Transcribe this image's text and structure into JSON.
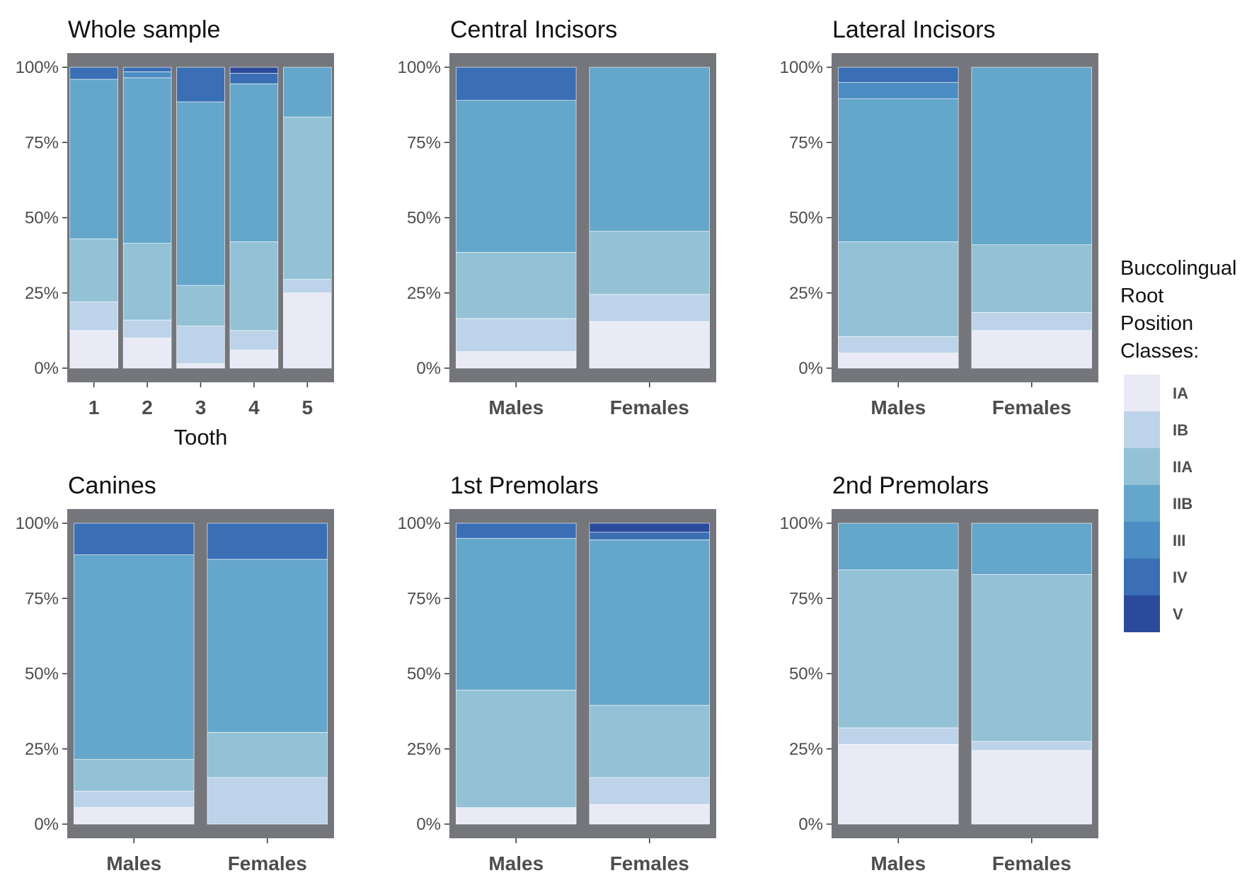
{
  "legend": {
    "title_lines": [
      "Buccolingual",
      "Root",
      "Position",
      "Classes:"
    ],
    "classes": [
      "IA",
      "IB",
      "IIA",
      "IIB",
      "III",
      "IV",
      "V"
    ]
  },
  "colors": {
    "IA": "#eaeaf6",
    "IB": "#bdd3e9",
    "IIA": "#93c2d6",
    "IIB": "#65a6cb",
    "III": "#4c8ec3",
    "IV": "#3a6fb5",
    "V": "#2b4a9b",
    "panel_bg": "#74767b"
  },
  "y_tick_labels": [
    "0%",
    "25%",
    "50%",
    "75%",
    "100%"
  ],
  "chart_data": [
    {
      "type": "bar",
      "stacked": true,
      "title": "Whole sample",
      "xlabel": "Tooth",
      "ylabel": "",
      "ylim": [
        0,
        100
      ],
      "categories": [
        "1",
        "2",
        "3",
        "4",
        "5"
      ],
      "series": [
        {
          "name": "IA",
          "values": [
            12.5,
            10,
            1.5,
            6,
            25
          ]
        },
        {
          "name": "IB",
          "values": [
            9.5,
            6,
            12.5,
            6.5,
            4.5
          ]
        },
        {
          "name": "IIA",
          "values": [
            21,
            25.5,
            13.5,
            29.5,
            54
          ]
        },
        {
          "name": "IIB",
          "values": [
            53,
            55,
            61,
            52.5,
            16.5
          ]
        },
        {
          "name": "III",
          "values": [
            0,
            2,
            0,
            0,
            0
          ]
        },
        {
          "name": "IV",
          "values": [
            4,
            1.5,
            11.5,
            3.5,
            0
          ]
        },
        {
          "name": "V",
          "values": [
            0,
            0,
            0,
            2,
            0
          ]
        }
      ]
    },
    {
      "type": "bar",
      "stacked": true,
      "title": "Central Incisors",
      "xlabel": "",
      "ylabel": "",
      "ylim": [
        0,
        100
      ],
      "categories": [
        "Males",
        "Females"
      ],
      "series": [
        {
          "name": "IA",
          "values": [
            5.5,
            15.5
          ]
        },
        {
          "name": "IB",
          "values": [
            11,
            9
          ]
        },
        {
          "name": "IIA",
          "values": [
            22,
            21
          ]
        },
        {
          "name": "IIB",
          "values": [
            50.5,
            54.5
          ]
        },
        {
          "name": "III",
          "values": [
            0,
            0
          ]
        },
        {
          "name": "IV",
          "values": [
            11,
            0
          ]
        },
        {
          "name": "V",
          "values": [
            0,
            0
          ]
        }
      ]
    },
    {
      "type": "bar",
      "stacked": true,
      "title": "Lateral Incisors",
      "xlabel": "",
      "ylabel": "",
      "ylim": [
        0,
        100
      ],
      "categories": [
        "Males",
        "Females"
      ],
      "series": [
        {
          "name": "IA",
          "values": [
            5,
            12.5
          ]
        },
        {
          "name": "IB",
          "values": [
            5.5,
            6
          ]
        },
        {
          "name": "IIA",
          "values": [
            31.5,
            22.5
          ]
        },
        {
          "name": "IIB",
          "values": [
            47.5,
            59
          ]
        },
        {
          "name": "III",
          "values": [
            5.5,
            0
          ]
        },
        {
          "name": "IV",
          "values": [
            5,
            0
          ]
        },
        {
          "name": "V",
          "values": [
            0,
            0
          ]
        }
      ]
    },
    {
      "type": "bar",
      "stacked": true,
      "title": "Canines",
      "xlabel": "",
      "ylabel": "",
      "ylim": [
        0,
        100
      ],
      "categories": [
        "Males",
        "Females"
      ],
      "series": [
        {
          "name": "IA",
          "values": [
            5.5,
            0
          ]
        },
        {
          "name": "IB",
          "values": [
            5.5,
            15.5
          ]
        },
        {
          "name": "IIA",
          "values": [
            10.5,
            15
          ]
        },
        {
          "name": "IIB",
          "values": [
            68,
            57.5
          ]
        },
        {
          "name": "III",
          "values": [
            0,
            0
          ]
        },
        {
          "name": "IV",
          "values": [
            10.5,
            12
          ]
        },
        {
          "name": "V",
          "values": [
            0,
            0
          ]
        }
      ]
    },
    {
      "type": "bar",
      "stacked": true,
      "title": "1st Premolars",
      "xlabel": "",
      "ylabel": "",
      "ylim": [
        0,
        100
      ],
      "categories": [
        "Males",
        "Females"
      ],
      "series": [
        {
          "name": "IA",
          "values": [
            5.5,
            6.5
          ]
        },
        {
          "name": "IB",
          "values": [
            0,
            9
          ]
        },
        {
          "name": "IIA",
          "values": [
            39,
            24
          ]
        },
        {
          "name": "IIB",
          "values": [
            50.5,
            55
          ]
        },
        {
          "name": "III",
          "values": [
            0,
            0
          ]
        },
        {
          "name": "IV",
          "values": [
            5,
            2.5
          ]
        },
        {
          "name": "V",
          "values": [
            0,
            3
          ]
        }
      ]
    },
    {
      "type": "bar",
      "stacked": true,
      "title": "2nd Premolars",
      "xlabel": "",
      "ylabel": "",
      "ylim": [
        0,
        100
      ],
      "categories": [
        "Males",
        "Females"
      ],
      "series": [
        {
          "name": "IA",
          "values": [
            26.5,
            24.5
          ]
        },
        {
          "name": "IB",
          "values": [
            5.5,
            3
          ]
        },
        {
          "name": "IIA",
          "values": [
            52.5,
            55.5
          ]
        },
        {
          "name": "IIB",
          "values": [
            15.5,
            17
          ]
        },
        {
          "name": "III",
          "values": [
            0,
            0
          ]
        },
        {
          "name": "IV",
          "values": [
            0,
            0
          ]
        },
        {
          "name": "V",
          "values": [
            0,
            0
          ]
        }
      ]
    }
  ]
}
